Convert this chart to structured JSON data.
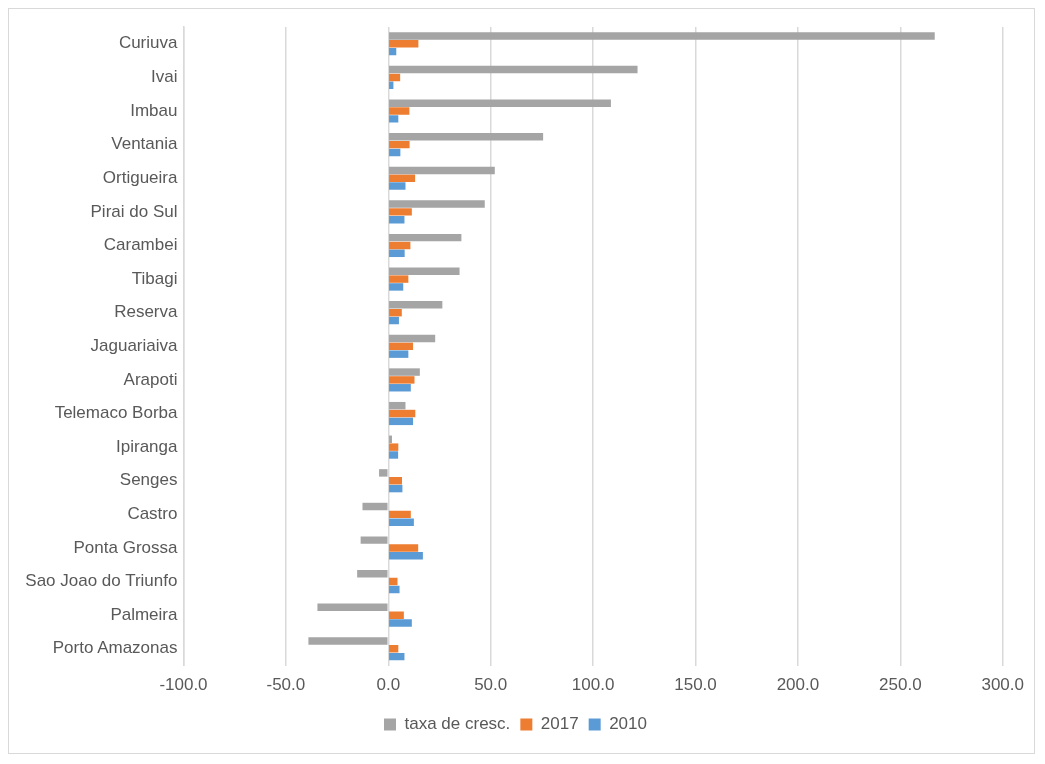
{
  "chart_data": {
    "type": "bar",
    "orientation": "horizontal",
    "categories": [
      "Curiuva",
      "Ivai",
      "Imbau",
      "Ventania",
      "Ortigueira",
      "Pirai do Sul",
      "Carambei",
      "Tibagi",
      "Reserva",
      "Jaguariaiva",
      "Arapoti",
      "Telemaco Borba",
      "Ipiranga",
      "Senges",
      "Castro",
      "Ponta Grossa",
      "Sao Joao do Triunfo",
      "Palmeira",
      "Porto Amazonas"
    ],
    "series": [
      {
        "name": "taxa de cresc.",
        "color": "#a5a5a5",
        "values": [
          266.8,
          121.7,
          108.7,
          75.6,
          52.0,
          47.1,
          35.7,
          34.8,
          26.4,
          22.9,
          15.4,
          8.4,
          1.8,
          -4.5,
          -12.6,
          -13.5,
          -15.2,
          -34.6,
          -39.0
        ]
      },
      {
        "name": "2017",
        "color": "#ed7d31",
        "values": [
          14.7,
          5.8,
          10.3,
          10.4,
          13.1,
          11.5,
          10.8,
          9.8,
          6.6,
          12.1,
          12.8,
          13.2,
          4.9,
          6.7,
          11.0,
          14.6,
          4.5,
          7.6,
          4.9
        ]
      },
      {
        "name": "2010",
        "color": "#5b9bd5",
        "values": [
          3.9,
          2.5,
          4.9,
          5.9,
          8.4,
          7.9,
          8.0,
          7.3,
          5.2,
          9.8,
          11.0,
          12.1,
          4.8,
          6.9,
          12.5,
          16.9,
          5.5,
          11.5,
          7.9
        ]
      }
    ],
    "xlim": [
      -100,
      300
    ],
    "xticks": [
      {
        "value": -100,
        "label": "-100.0"
      },
      {
        "value": -50,
        "label": "-50.0"
      },
      {
        "value": 0,
        "label": "0.0"
      },
      {
        "value": 50,
        "label": "50.0"
      },
      {
        "value": 100,
        "label": "100.0"
      },
      {
        "value": 150,
        "label": "150.0"
      },
      {
        "value": 200,
        "label": "200.0"
      },
      {
        "value": 250,
        "label": "250.0"
      },
      {
        "value": 300,
        "label": "300.0"
      }
    ],
    "grid": "x",
    "legend": "bottom"
  }
}
